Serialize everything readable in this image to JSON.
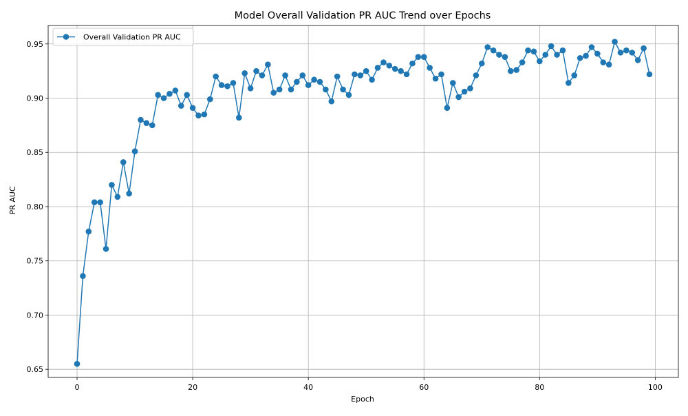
{
  "chart_data": {
    "type": "line",
    "title": "Model Overall Validation PR AUC Trend over Epochs",
    "xlabel": "Epoch",
    "ylabel": "PR AUC",
    "xlim": [
      -5,
      104
    ],
    "ylim": [
      0.6425,
      0.967
    ],
    "xticks": [
      0,
      20,
      40,
      60,
      80,
      100
    ],
    "xtick_labels": [
      "0",
      "20",
      "40",
      "60",
      "80",
      "100"
    ],
    "yticks": [
      0.65,
      0.7,
      0.75,
      0.8,
      0.85,
      0.9,
      0.95
    ],
    "ytick_labels": [
      "0.65",
      "0.70",
      "0.75",
      "0.80",
      "0.85",
      "0.90",
      "0.95"
    ],
    "grid": true,
    "legend_position": "upper left",
    "colors": {
      "series": "#1f77b4",
      "grid": "#b0b0b0",
      "axes": "#000000"
    },
    "series": [
      {
        "name": "Overall Validation PR AUC",
        "marker": "circle",
        "x": [
          0,
          1,
          2,
          3,
          4,
          5,
          6,
          7,
          8,
          9,
          10,
          11,
          12,
          13,
          14,
          15,
          16,
          17,
          18,
          19,
          20,
          21,
          22,
          23,
          24,
          25,
          26,
          27,
          28,
          29,
          30,
          31,
          32,
          33,
          34,
          35,
          36,
          37,
          38,
          39,
          40,
          41,
          42,
          43,
          44,
          45,
          46,
          47,
          48,
          49,
          50,
          51,
          52,
          53,
          54,
          55,
          56,
          57,
          58,
          59,
          60,
          61,
          62,
          63,
          64,
          65,
          66,
          67,
          68,
          69,
          70,
          71,
          72,
          73,
          74,
          75,
          76,
          77,
          78,
          79,
          80,
          81,
          82,
          83,
          84,
          85,
          86,
          87,
          88,
          89,
          90,
          91,
          92,
          93,
          94,
          95,
          96,
          97,
          98,
          99
        ],
        "values": [
          0.655,
          0.736,
          0.777,
          0.804,
          0.804,
          0.761,
          0.82,
          0.809,
          0.841,
          0.812,
          0.851,
          0.88,
          0.877,
          0.875,
          0.903,
          0.9,
          0.904,
          0.907,
          0.893,
          0.903,
          0.891,
          0.884,
          0.885,
          0.899,
          0.92,
          0.912,
          0.911,
          0.914,
          0.882,
          0.923,
          0.909,
          0.925,
          0.921,
          0.931,
          0.905,
          0.908,
          0.921,
          0.908,
          0.915,
          0.921,
          0.912,
          0.917,
          0.915,
          0.908,
          0.897,
          0.92,
          0.908,
          0.903,
          0.922,
          0.921,
          0.925,
          0.917,
          0.928,
          0.933,
          0.93,
          0.927,
          0.925,
          0.922,
          0.932,
          0.938,
          0.938,
          0.928,
          0.918,
          0.922,
          0.891,
          0.914,
          0.901,
          0.906,
          0.909,
          0.921,
          0.932,
          0.947,
          0.944,
          0.94,
          0.938,
          0.925,
          0.926,
          0.933,
          0.944,
          0.943,
          0.934,
          0.94,
          0.948,
          0.94,
          0.944,
          0.914,
          0.921,
          0.937,
          0.939,
          0.947,
          0.941,
          0.933,
          0.931,
          0.952,
          0.942,
          0.944,
          0.942,
          0.935,
          0.946,
          0.922
        ]
      }
    ]
  }
}
